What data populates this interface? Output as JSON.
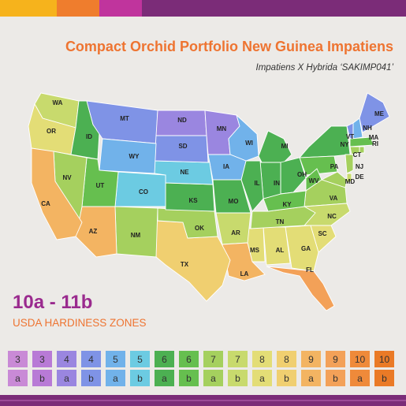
{
  "title": "Compact Orchid Portfolio New Guinea Impatiens",
  "subtitle": "Impatiens X Hybrida ‘SAKIMP041’",
  "zone_range": "10a - 11b",
  "zone_caption": "USDA HARDINESS ZONES",
  "colors": {
    "title_orange": "#ee7431",
    "brand_purple": "#7b2c78",
    "zone_range_purple": "#9a2a8e",
    "top_bar": [
      "#f6b31c",
      "#ef7d2d",
      "#c0349d",
      "#7b2c78"
    ]
  },
  "states": [
    {
      "abbr": "WA",
      "zone": "7b"
    },
    {
      "abbr": "OR",
      "zone": "8a"
    },
    {
      "abbr": "ID",
      "zone": "6a"
    },
    {
      "abbr": "MT",
      "zone": "4b"
    },
    {
      "abbr": "ND",
      "zone": "4a"
    },
    {
      "abbr": "MN",
      "zone": "4a"
    },
    {
      "abbr": "WI",
      "zone": "5a"
    },
    {
      "abbr": "MI",
      "zone": "6a"
    },
    {
      "abbr": "NY",
      "zone": "6a"
    },
    {
      "abbr": "VT",
      "zone": "4b"
    },
    {
      "abbr": "NH",
      "zone": "5a"
    },
    {
      "abbr": "ME",
      "zone": "4b"
    },
    {
      "abbr": "MA",
      "zone": "6b"
    },
    {
      "abbr": "RI",
      "zone": "7a"
    },
    {
      "abbr": "CT",
      "zone": "7a"
    },
    {
      "abbr": "NJ",
      "zone": "7a"
    },
    {
      "abbr": "DE",
      "zone": "7b"
    },
    {
      "abbr": "MD",
      "zone": "7a"
    },
    {
      "abbr": "PA",
      "zone": "6b"
    },
    {
      "abbr": "OH",
      "zone": "6a"
    },
    {
      "abbr": "WV",
      "zone": "6b"
    },
    {
      "abbr": "VA",
      "zone": "7a"
    },
    {
      "abbr": "NC",
      "zone": "7b"
    },
    {
      "abbr": "SC",
      "zone": "8a"
    },
    {
      "abbr": "GA",
      "zone": "8a"
    },
    {
      "abbr": "FL",
      "zone": "9b"
    },
    {
      "abbr": "AL",
      "zone": "8a"
    },
    {
      "abbr": "MS",
      "zone": "8a"
    },
    {
      "abbr": "TN",
      "zone": "7a"
    },
    {
      "abbr": "KY",
      "zone": "6b"
    },
    {
      "abbr": "IN",
      "zone": "6a"
    },
    {
      "abbr": "IL",
      "zone": "6a"
    },
    {
      "abbr": "IA",
      "zone": "5a"
    },
    {
      "abbr": "MO",
      "zone": "6a"
    },
    {
      "abbr": "AR",
      "zone": "7b"
    },
    {
      "abbr": "LA",
      "zone": "9a"
    },
    {
      "abbr": "TX",
      "zone": "8b"
    },
    {
      "abbr": "OK",
      "zone": "7a"
    },
    {
      "abbr": "KS",
      "zone": "6a"
    },
    {
      "abbr": "NE",
      "zone": "5b"
    },
    {
      "abbr": "SD",
      "zone": "4b"
    },
    {
      "abbr": "WY",
      "zone": "5a"
    },
    {
      "abbr": "CO",
      "zone": "5b"
    },
    {
      "abbr": "NM",
      "zone": "7a"
    },
    {
      "abbr": "AZ",
      "zone": "9a"
    },
    {
      "abbr": "UT",
      "zone": "6b"
    },
    {
      "abbr": "NV",
      "zone": "7a"
    },
    {
      "abbr": "CA",
      "zone": "9a"
    }
  ],
  "legend": [
    {
      "num": "3",
      "sub": "a",
      "color": "#c98ad6"
    },
    {
      "num": "3",
      "sub": "b",
      "color": "#b87ad6"
    },
    {
      "num": "4",
      "sub": "a",
      "color": "#9a86e0"
    },
    {
      "num": "4",
      "sub": "b",
      "color": "#7f93e6"
    },
    {
      "num": "5",
      "sub": "a",
      "color": "#71b2ea"
    },
    {
      "num": "5",
      "sub": "b",
      "color": "#6ccbe2"
    },
    {
      "num": "6",
      "sub": "a",
      "color": "#4cb052"
    },
    {
      "num": "6",
      "sub": "b",
      "color": "#66bf4f"
    },
    {
      "num": "7",
      "sub": "a",
      "color": "#a5d05e"
    },
    {
      "num": "7",
      "sub": "b",
      "color": "#c8da6d"
    },
    {
      "num": "8",
      "sub": "a",
      "color": "#e3dd76"
    },
    {
      "num": "8",
      "sub": "b",
      "color": "#f0cf70"
    },
    {
      "num": "9",
      "sub": "a",
      "color": "#f3b462"
    },
    {
      "num": "9",
      "sub": "b",
      "color": "#f3a158"
    },
    {
      "num": "10",
      "sub": "a",
      "color": "#ef8a3a"
    },
    {
      "num": "10",
      "sub": "b",
      "color": "#ea7a26"
    }
  ],
  "zone_colors": {
    "3a": "#c98ad6",
    "3b": "#b87ad6",
    "4a": "#9a86e0",
    "4b": "#7f93e6",
    "5a": "#71b2ea",
    "5b": "#6ccbe2",
    "6a": "#4cb052",
    "6b": "#66bf4f",
    "7a": "#a5d05e",
    "7b": "#c8da6d",
    "8a": "#e3dd76",
    "8b": "#f0cf70",
    "9a": "#f3b462",
    "9b": "#f3a158",
    "10a": "#ef8a3a",
    "10b": "#ea7a26"
  }
}
